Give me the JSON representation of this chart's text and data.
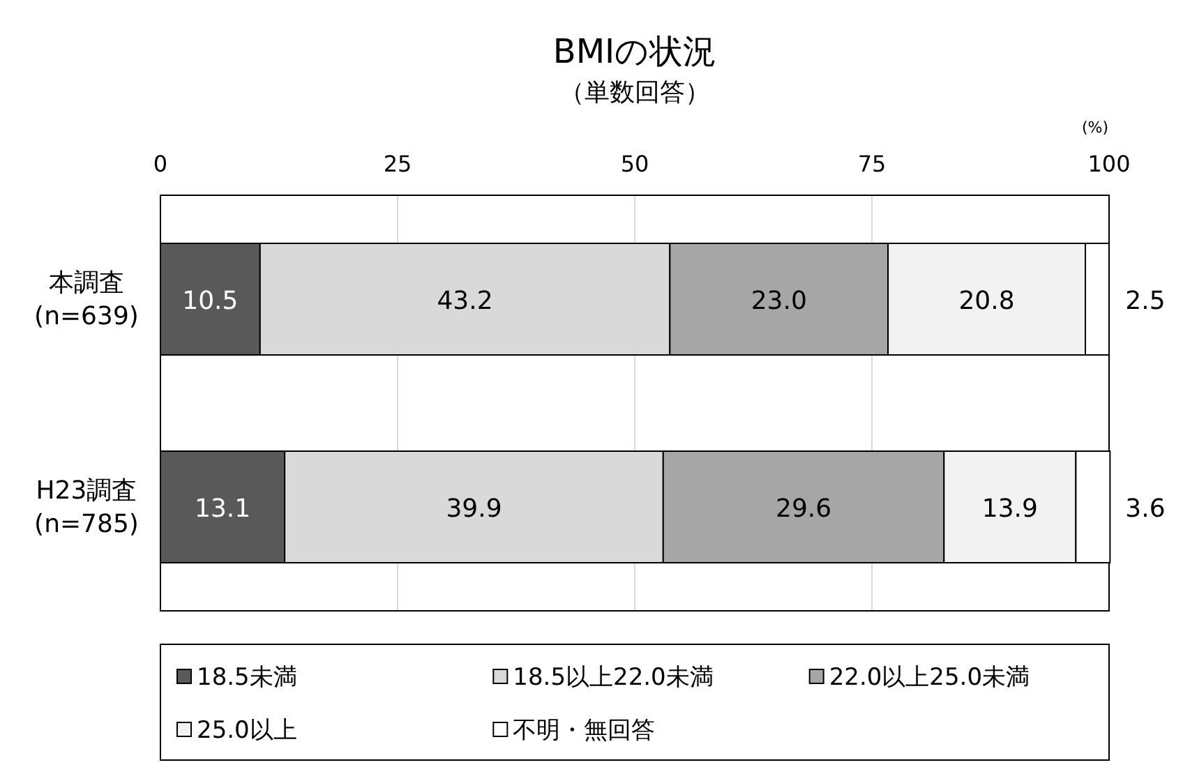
{
  "chart_data": {
    "type": "bar",
    "orientation": "horizontal",
    "stacked": true,
    "title": "BMIの状況",
    "subtitle": "（単数回答）",
    "xlabel": "(%)",
    "categories": [
      "本調査\n(n=639)",
      "H23調査\n(n=785)"
    ],
    "xlim": [
      0,
      100
    ],
    "xticks": [
      0,
      25,
      50,
      75,
      100
    ],
    "grid": "x",
    "legend": "bottom",
    "series": [
      {
        "name": "18.5未満",
        "color": "#595959",
        "values": [
          10.5,
          13.1
        ],
        "value_labels": [
          "10.5",
          "13.1"
        ]
      },
      {
        "name": "18.5以上22.0未満",
        "color": "#d9d9d9",
        "values": [
          43.2,
          39.9
        ],
        "value_labels": [
          "43.2",
          "39.9"
        ]
      },
      {
        "name": "22.0以上25.0未満",
        "color": "#a6a6a6",
        "values": [
          23.0,
          29.6
        ],
        "value_labels": [
          "23.0",
          "29.6"
        ]
      },
      {
        "name": "25.0以上",
        "color": "#f2f2f2",
        "values": [
          20.8,
          13.9
        ],
        "value_labels": [
          "20.8",
          "13.9"
        ]
      },
      {
        "name": "不明・無回答",
        "color": "#ffffff",
        "values": [
          2.5,
          3.6
        ],
        "value_labels": [
          "2.5",
          "3.6"
        ]
      }
    ]
  }
}
